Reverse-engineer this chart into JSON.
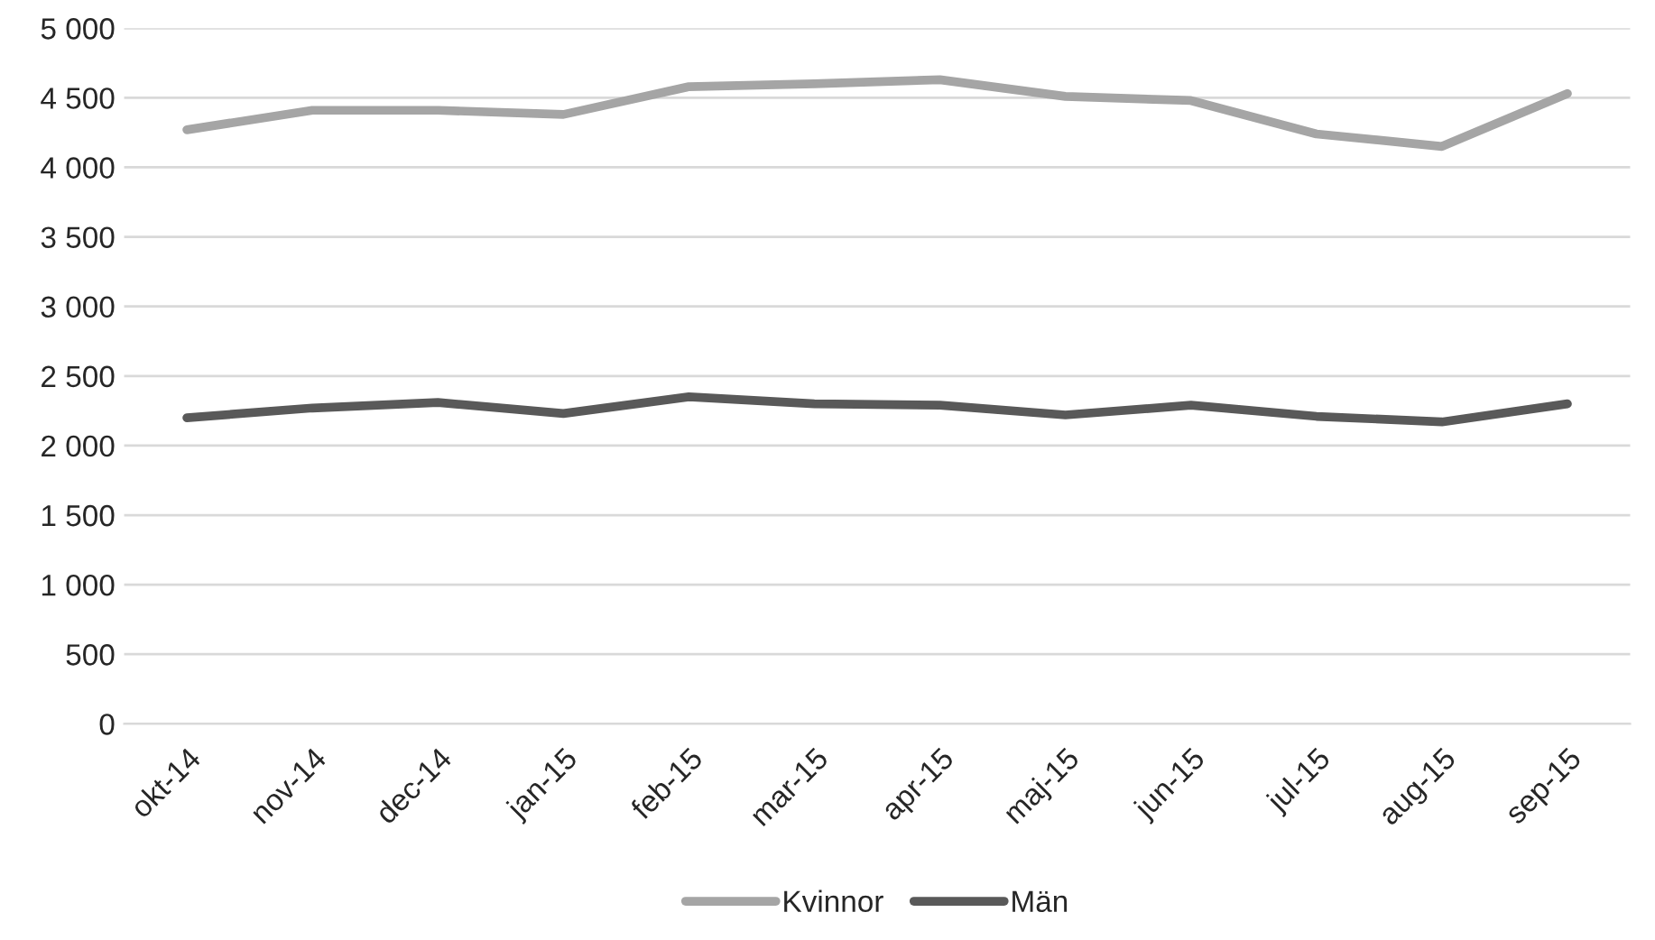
{
  "chart_data": {
    "type": "line",
    "categories": [
      "okt-14",
      "nov-14",
      "dec-14",
      "jan-15",
      "feb-15",
      "mar-15",
      "apr-15",
      "maj-15",
      "jun-15",
      "jul-15",
      "aug-15",
      "sep-15"
    ],
    "series": [
      {
        "name": "Kvinnor",
        "color": "#a5a5a5",
        "values": [
          4270,
          4410,
          4410,
          4380,
          4580,
          4600,
          4630,
          4510,
          4480,
          4240,
          4150,
          4530
        ]
      },
      {
        "name": "Män",
        "color": "#595959",
        "values": [
          2200,
          2270,
          2310,
          2230,
          2350,
          2300,
          2290,
          2220,
          2290,
          2210,
          2170,
          2300
        ]
      }
    ],
    "ylim": [
      0,
      5000
    ],
    "yticks": [
      0,
      500,
      {
        "value": 1000,
        "label": "1 000"
      },
      {
        "value": 1500,
        "label": "1 500"
      },
      {
        "value": 2000,
        "label": "2 000"
      },
      {
        "value": 2500,
        "label": "2 500"
      },
      {
        "value": 3000,
        "label": "3 000"
      },
      {
        "value": 3500,
        "label": "3 500"
      },
      {
        "value": 4000,
        "label": "4 000"
      },
      {
        "value": 4500,
        "label": "4 500"
      },
      {
        "value": 5000,
        "label": "5 000"
      }
    ],
    "grid": "y",
    "legend": "bottom",
    "marker": "none",
    "line_style": "solid"
  }
}
